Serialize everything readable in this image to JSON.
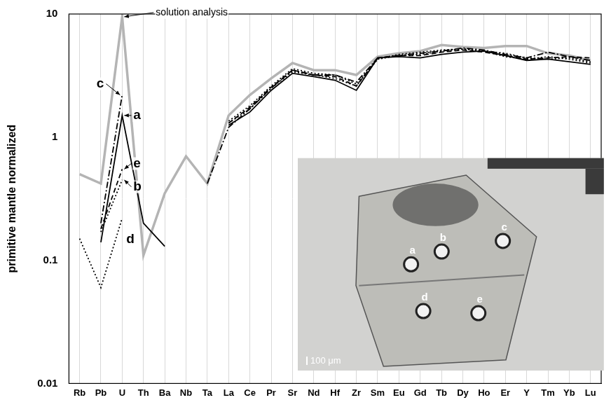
{
  "chart_data": {
    "type": "line",
    "y_label": "primitive mantle normalized",
    "log": "y",
    "grid": true,
    "categories": [
      "Rb",
      "Pb",
      "U",
      "Th",
      "Ba",
      "Nb",
      "Ta",
      "La",
      "Ce",
      "Pr",
      "Sr",
      "Nd",
      "Hf",
      "Zr",
      "Sm",
      "Eu",
      "Gd",
      "Tb",
      "Dy",
      "Ho",
      "Er",
      "Y",
      "Tm",
      "Yb",
      "Lu"
    ],
    "ylim": [
      0.01,
      10
    ],
    "yticks": [
      0.01,
      0.1,
      1,
      10
    ],
    "series": [
      {
        "name": "solution analysis",
        "color": "#b4b4b4",
        "line_style": "solid",
        "values": [
          0.5,
          0.42,
          9.5,
          0.11,
          0.35,
          0.7,
          0.42,
          1.5,
          2.2,
          3.0,
          4.0,
          3.5,
          3.5,
          3.2,
          4.5,
          4.8,
          5.0,
          5.6,
          5.4,
          5.3,
          5.5,
          5.5,
          4.8,
          4.6,
          4.2
        ]
      },
      {
        "name": "a",
        "color": "#000000",
        "line_style": "solid",
        "values": [
          null,
          0.14,
          1.5,
          0.2,
          0.13,
          null,
          null,
          1.25,
          1.6,
          2.4,
          3.3,
          3.1,
          2.9,
          2.4,
          4.4,
          4.5,
          4.4,
          4.7,
          4.9,
          5.0,
          4.6,
          4.2,
          4.3,
          4.1,
          3.9
        ]
      },
      {
        "name": "b",
        "color": "#000000",
        "line_style": "dotted",
        "values": [
          null,
          0.17,
          0.45,
          null,
          null,
          null,
          null,
          1.3,
          1.7,
          2.5,
          3.4,
          3.2,
          3.0,
          2.6,
          4.3,
          4.6,
          4.7,
          5.0,
          5.2,
          5.0,
          4.8,
          4.4,
          4.3,
          4.4,
          4.1
        ]
      },
      {
        "name": "c",
        "color": "#000000",
        "line_style": "dashdot",
        "values": [
          null,
          0.2,
          2.2,
          null,
          null,
          null,
          0.42,
          1.2,
          1.7,
          2.5,
          3.5,
          3.2,
          3.2,
          2.8,
          4.4,
          4.6,
          4.8,
          5.0,
          5.3,
          5.1,
          4.7,
          4.4,
          4.9,
          4.5,
          4.2
        ]
      },
      {
        "name": "d",
        "color": "#000000",
        "line_style": "dotted",
        "values": [
          0.15,
          0.06,
          0.22,
          null,
          null,
          null,
          null,
          1.35,
          1.8,
          2.6,
          3.6,
          3.3,
          3.2,
          2.7,
          4.3,
          4.7,
          4.9,
          5.1,
          5.2,
          5.0,
          4.5,
          4.3,
          4.5,
          4.3,
          4.0
        ]
      },
      {
        "name": "e",
        "color": "#000000",
        "line_style": "dashed",
        "values": [
          null,
          0.18,
          0.55,
          null,
          null,
          null,
          null,
          1.3,
          1.75,
          2.55,
          3.5,
          3.2,
          3.1,
          2.6,
          4.4,
          4.6,
          4.6,
          4.9,
          5.1,
          4.9,
          4.6,
          4.3,
          4.4,
          4.5,
          4.4
        ]
      }
    ],
    "inset": {
      "spots": [
        "a",
        "b",
        "c",
        "d",
        "e"
      ],
      "scale_bar": "100 μm"
    }
  }
}
